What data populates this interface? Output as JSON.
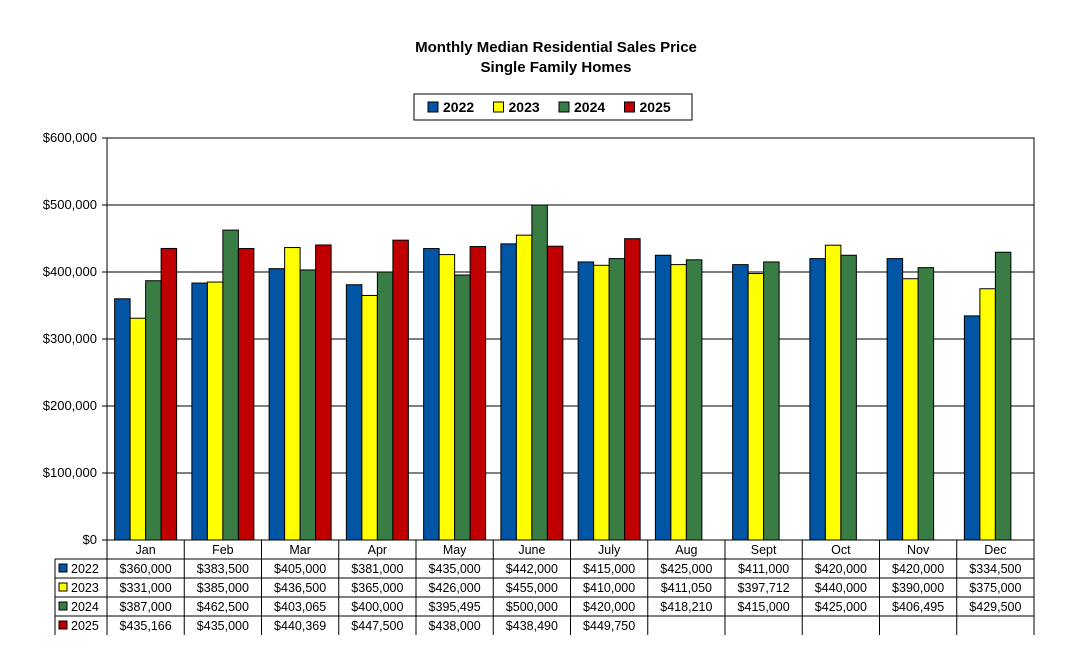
{
  "chart_data": {
    "type": "bar",
    "title": "Monthly Median Residential Sales Price",
    "subtitle": "Single Family Homes",
    "xlabel": "",
    "ylabel": "",
    "categories": [
      "Jan",
      "Feb",
      "Mar",
      "Apr",
      "May",
      "June",
      "July",
      "Aug",
      "Sept",
      "Oct",
      "Nov",
      "Dec"
    ],
    "ylim": [
      0,
      600000
    ],
    "yticks": [
      0,
      100000,
      200000,
      300000,
      400000,
      500000,
      600000
    ],
    "ytick_labels": [
      "$0",
      "$100,000",
      "$200,000",
      "$300,000",
      "$400,000",
      "$500,000",
      "$600,000"
    ],
    "grid": "horizontal",
    "legend_position": "top-center",
    "series": [
      {
        "name": "2022",
        "color": "#0055a5",
        "values": [
          360000,
          383500,
          405000,
          381000,
          435000,
          442000,
          415000,
          425000,
          411000,
          420000,
          420000,
          334500
        ],
        "labels": [
          "$360,000",
          "$383,500",
          "$405,000",
          "$381,000",
          "$435,000",
          "$442,000",
          "$415,000",
          "$425,000",
          "$411,000",
          "$420,000",
          "$420,000",
          "$334,500"
        ]
      },
      {
        "name": "2023",
        "color": "#ffff00",
        "values": [
          331000,
          385000,
          436500,
          365000,
          426000,
          455000,
          410000,
          411050,
          397712,
          440000,
          390000,
          375000
        ],
        "labels": [
          "$331,000",
          "$385,000",
          "$436,500",
          "$365,000",
          "$426,000",
          "$455,000",
          "$410,000",
          "$411,050",
          "$397,712",
          "$440,000",
          "$390,000",
          "$375,000"
        ]
      },
      {
        "name": "2024",
        "color": "#3a7d44",
        "values": [
          387000,
          462500,
          403065,
          400000,
          395495,
          500000,
          420000,
          418210,
          415000,
          425000,
          406495,
          429500
        ],
        "labels": [
          "$387,000",
          "$462,500",
          "$403,065",
          "$400,000",
          "$395,495",
          "$500,000",
          "$420,000",
          "$418,210",
          "$415,000",
          "$425,000",
          "$406,495",
          "$429,500"
        ]
      },
      {
        "name": "2025",
        "color": "#c00000",
        "values": [
          435166,
          435000,
          440369,
          447500,
          438000,
          438490,
          449750,
          null,
          null,
          null,
          null,
          null
        ],
        "labels": [
          "$435,166",
          "$435,000",
          "$440,369",
          "$447,500",
          "$438,000",
          "$438,490",
          "$449,750",
          "",
          "",
          "",
          "",
          ""
        ]
      }
    ]
  }
}
